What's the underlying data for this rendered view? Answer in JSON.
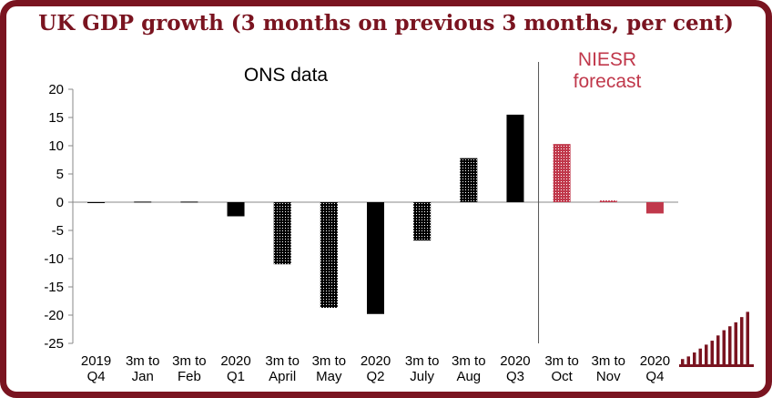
{
  "title": "UK GDP growth (3 months on previous 3 months, per cent)",
  "chart_data": {
    "type": "bar",
    "title": "UK GDP growth (3 months on previous 3 months, per cent)",
    "categories": [
      [
        "2019",
        "Q4"
      ],
      [
        "3m to",
        "Jan"
      ],
      [
        "3m to",
        "Feb"
      ],
      [
        "2020",
        "Q1"
      ],
      [
        "3m to",
        "April"
      ],
      [
        "3m to",
        "May"
      ],
      [
        "2020",
        "Q2"
      ],
      [
        "3m to",
        "July"
      ],
      [
        "3m to",
        "Aug"
      ],
      [
        "2020",
        "Q3"
      ],
      [
        "3m to",
        "Oct"
      ],
      [
        "3m to",
        "Nov"
      ],
      [
        "2020",
        "Q4"
      ]
    ],
    "values": [
      0.0,
      0.1,
      0.1,
      -2.5,
      -11.0,
      -18.7,
      -19.8,
      -6.8,
      7.8,
      15.5,
      10.3,
      0.3,
      -2.0
    ],
    "ylim": [
      -25,
      20
    ],
    "yticks": [
      20,
      15,
      10,
      5,
      0,
      -5,
      -10,
      -15,
      -20,
      -25
    ],
    "bar_styles": [
      "solid",
      "dotted",
      "dotted",
      "solid",
      "dotted",
      "dotted",
      "solid",
      "dotted",
      "dotted",
      "solid",
      "dotted-red",
      "dotted-red",
      "solid-red"
    ],
    "annotations": {
      "ons": "ONS data",
      "niesr": [
        "NIESR",
        "forecast"
      ]
    },
    "colors": {
      "actual": "#000000",
      "forecast": "#c0384b",
      "title": "#7a1420"
    },
    "grid": false
  }
}
